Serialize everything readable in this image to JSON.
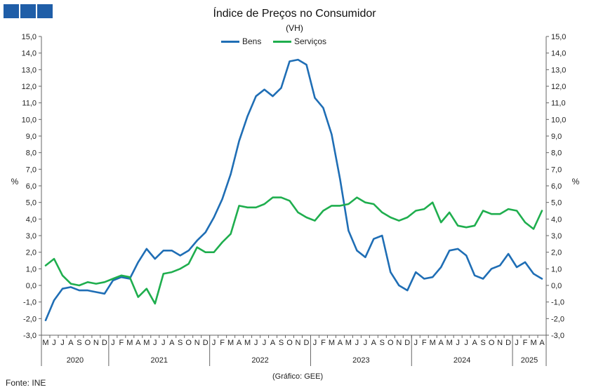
{
  "header": {
    "title": "Índice de Preços no Consumidor",
    "subtitle": "(VH)"
  },
  "footer": {
    "source": "Fonte: INE",
    "credit": "(Gráfico: GEE)"
  },
  "colors": {
    "logo": "#1f5ea8",
    "bens": "#1f6eb5",
    "servicos": "#1fae4e",
    "axis": "#666666"
  },
  "chart_data": {
    "type": "line",
    "title": "Índice de Preços no Consumidor",
    "subtitle": "(VH)",
    "ylabel_left": "%",
    "ylabel_right": "%",
    "ylim": [
      -3,
      15
    ],
    "y_tick_labels": [
      "-3,0",
      "-2,0",
      "-1,0",
      "0,0",
      "1,0",
      "2,0",
      "3,0",
      "4,0",
      "5,0",
      "6,0",
      "7,0",
      "8,0",
      "9,0",
      "10,0",
      "11,0",
      "12,0",
      "13,0",
      "14,0",
      "15,0"
    ],
    "legend_position": "top-center",
    "grid": false,
    "month_labels": [
      "M",
      "J",
      "J",
      "A",
      "S",
      "O",
      "N",
      "D",
      "J",
      "F",
      "M",
      "A",
      "M",
      "J",
      "J",
      "A",
      "S",
      "O",
      "N",
      "D",
      "J",
      "F",
      "M",
      "A",
      "M",
      "J",
      "J",
      "A",
      "S",
      "O",
      "N",
      "D",
      "J",
      "F",
      "M",
      "A",
      "M",
      "J",
      "J",
      "A",
      "S",
      "O",
      "N",
      "D",
      "J",
      "F",
      "M",
      "A",
      "M",
      "J",
      "J",
      "A",
      "S",
      "O",
      "N",
      "D",
      "J",
      "F",
      "M",
      "A"
    ],
    "years": [
      {
        "label": "2020",
        "start": 0,
        "end": 8
      },
      {
        "label": "2021",
        "start": 8,
        "end": 20
      },
      {
        "label": "2022",
        "start": 20,
        "end": 32
      },
      {
        "label": "2023",
        "start": 32,
        "end": 44
      },
      {
        "label": "2024",
        "start": 44,
        "end": 56
      },
      {
        "label": "2025",
        "start": 56,
        "end": 60
      }
    ],
    "series": [
      {
        "name": "Bens",
        "color": "#1f6eb5",
        "values": [
          -2.1,
          -0.9,
          -0.2,
          -0.1,
          -0.3,
          -0.3,
          -0.4,
          -0.5,
          0.3,
          0.5,
          0.4,
          1.4,
          2.2,
          1.6,
          2.1,
          2.1,
          1.8,
          2.1,
          2.7,
          3.2,
          4.1,
          5.2,
          6.7,
          8.7,
          10.2,
          11.4,
          11.8,
          11.4,
          11.9,
          13.5,
          13.6,
          13.3,
          11.3,
          10.7,
          9.1,
          6.4,
          3.3,
          2.1,
          1.7,
          2.8,
          3.0,
          0.8,
          0.0,
          -0.3,
          0.8,
          0.4,
          0.5,
          1.1,
          2.1,
          2.2,
          1.8,
          0.6,
          0.4,
          1.0,
          1.2,
          1.9,
          1.1,
          1.4,
          0.7,
          0.4
        ]
      },
      {
        "name": "Serviços",
        "color": "#1fae4e",
        "values": [
          1.2,
          1.6,
          0.6,
          0.1,
          0.0,
          0.2,
          0.1,
          0.2,
          0.4,
          0.6,
          0.5,
          -0.7,
          -0.2,
          -1.1,
          0.7,
          0.8,
          1.0,
          1.3,
          2.3,
          2.0,
          2.0,
          2.6,
          3.1,
          4.8,
          4.7,
          4.7,
          4.9,
          5.3,
          5.3,
          5.1,
          4.4,
          4.1,
          3.9,
          4.5,
          4.8,
          4.8,
          4.9,
          5.3,
          5.0,
          4.9,
          4.4,
          4.1,
          3.9,
          4.1,
          4.5,
          4.6,
          5.0,
          3.8,
          4.4,
          3.6,
          3.5,
          3.6,
          4.5,
          4.3,
          4.3,
          4.6,
          4.5,
          3.8,
          3.4,
          4.5
        ]
      }
    ]
  }
}
